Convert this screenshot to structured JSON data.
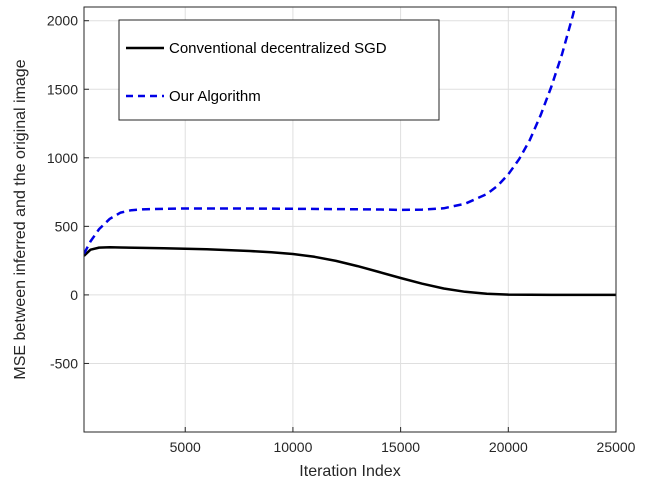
{
  "chart_data": {
    "type": "line",
    "title": "",
    "xlabel": "Iteration Index",
    "ylabel": "MSE between inferred and the original image",
    "xlim": [
      300,
      25000
    ],
    "ylim": [
      -1000,
      2100
    ],
    "xticks": [
      5000,
      10000,
      15000,
      20000,
      25000
    ],
    "xtick_labels": [
      "5000",
      "10000",
      "15000",
      "20000",
      "25000"
    ],
    "yticks": [
      -500,
      0,
      500,
      1000,
      1500,
      2000
    ],
    "ytick_labels": [
      "-500",
      "0",
      "500",
      "1000",
      "1500",
      "2000"
    ],
    "grid": true,
    "legend_position": "top-left",
    "series": [
      {
        "name": "Conventional decentralized SGD",
        "color": "#000000",
        "style": "solid",
        "x": [
          300,
          600,
          1000,
          1500,
          2000,
          3000,
          4000,
          5000,
          6000,
          7000,
          8000,
          9000,
          10000,
          11000,
          12000,
          13000,
          14000,
          15000,
          16000,
          17000,
          18000,
          19000,
          20000,
          21000,
          22000,
          23000,
          24000,
          25000
        ],
        "y": [
          285,
          330,
          345,
          347,
          346,
          343,
          340,
          337,
          333,
          327,
          320,
          311,
          298,
          278,
          248,
          210,
          167,
          123,
          82,
          47,
          23,
          8,
          2,
          1,
          0,
          0,
          0,
          0
        ]
      },
      {
        "name": "Our Algorithm",
        "color": "#0000e6",
        "style": "dashed",
        "x": [
          300,
          600,
          1000,
          1500,
          2000,
          2500,
          3000,
          4000,
          5000,
          6000,
          8000,
          10000,
          12000,
          14000,
          15000,
          16000,
          17000,
          18000,
          19000,
          19500,
          20000,
          20500,
          21000,
          21500,
          22000,
          22500,
          23000,
          23200
        ],
        "y": [
          300,
          390,
          480,
          555,
          600,
          618,
          624,
          628,
          630,
          630,
          630,
          628,
          626,
          623,
          620,
          622,
          632,
          665,
          735,
          795,
          880,
          990,
          1130,
          1310,
          1520,
          1760,
          2040,
          2170
        ]
      }
    ]
  }
}
